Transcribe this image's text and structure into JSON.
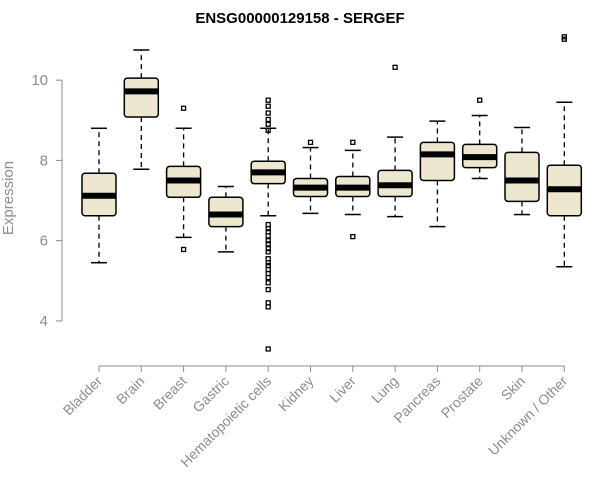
{
  "chart_data": {
    "type": "box",
    "title": "ENSG00000129158 - SERGEF",
    "xlabel": "",
    "ylabel": "Expression",
    "ylim": [
      3.1,
      11.2
    ],
    "yticks": [
      4,
      6,
      8,
      10
    ],
    "box_fill": "#ede7cf",
    "categories": [
      "Bladder",
      "Brain",
      "Breast",
      "Gastric",
      "Hematopoietic cells",
      "Kidney",
      "Liver",
      "Lung",
      "Pancreas",
      "Prostate",
      "Skin",
      "Unknown / Other"
    ],
    "boxes": [
      {
        "name": "Bladder",
        "whisker_low": 5.45,
        "q1": 6.62,
        "median": 7.12,
        "q3": 7.68,
        "whisker_high": 8.8,
        "outliers": []
      },
      {
        "name": "Brain",
        "whisker_low": 7.78,
        "q1": 9.08,
        "median": 9.72,
        "q3": 10.05,
        "whisker_high": 10.75,
        "outliers": []
      },
      {
        "name": "Breast",
        "whisker_low": 6.08,
        "q1": 7.08,
        "median": 7.5,
        "q3": 7.85,
        "whisker_high": 8.8,
        "outliers": [
          9.3,
          5.78
        ]
      },
      {
        "name": "Gastric",
        "whisker_low": 5.72,
        "q1": 6.35,
        "median": 6.65,
        "q3": 7.08,
        "whisker_high": 7.35,
        "outliers": []
      },
      {
        "name": "Hematopoietic cells",
        "whisker_low": 6.62,
        "q1": 7.42,
        "median": 7.7,
        "q3": 7.98,
        "whisker_high": 8.8,
        "outliers": [
          9.5,
          9.35,
          9.18,
          9.02,
          8.9,
          8.75,
          6.4,
          6.3,
          6.22,
          6.12,
          6.0,
          5.92,
          5.8,
          5.72,
          5.55,
          5.45,
          5.38,
          5.28,
          5.18,
          5.08,
          4.95,
          4.78,
          4.45,
          4.35,
          3.3
        ]
      },
      {
        "name": "Kidney",
        "whisker_low": 6.68,
        "q1": 7.1,
        "median": 7.32,
        "q3": 7.55,
        "whisker_high": 8.32,
        "outliers": [
          8.45
        ]
      },
      {
        "name": "Liver",
        "whisker_low": 6.65,
        "q1": 7.1,
        "median": 7.32,
        "q3": 7.6,
        "whisker_high": 8.25,
        "outliers": [
          8.45,
          6.1
        ]
      },
      {
        "name": "Lung",
        "whisker_low": 6.6,
        "q1": 7.1,
        "median": 7.38,
        "q3": 7.75,
        "whisker_high": 8.58,
        "outliers": [
          10.32
        ]
      },
      {
        "name": "Pancreas",
        "whisker_low": 6.35,
        "q1": 7.5,
        "median": 8.15,
        "q3": 8.45,
        "whisker_high": 8.98,
        "outliers": []
      },
      {
        "name": "Prostate",
        "whisker_low": 7.55,
        "q1": 7.82,
        "median": 8.08,
        "q3": 8.4,
        "whisker_high": 9.12,
        "outliers": [
          9.5
        ]
      },
      {
        "name": "Skin",
        "whisker_low": 6.65,
        "q1": 6.98,
        "median": 7.5,
        "q3": 8.2,
        "whisker_high": 8.82,
        "outliers": []
      },
      {
        "name": "Unknown / Other",
        "whisker_low": 5.35,
        "q1": 6.62,
        "median": 7.28,
        "q3": 7.88,
        "whisker_high": 9.45,
        "outliers": [
          11.02,
          11.08
        ]
      }
    ]
  }
}
